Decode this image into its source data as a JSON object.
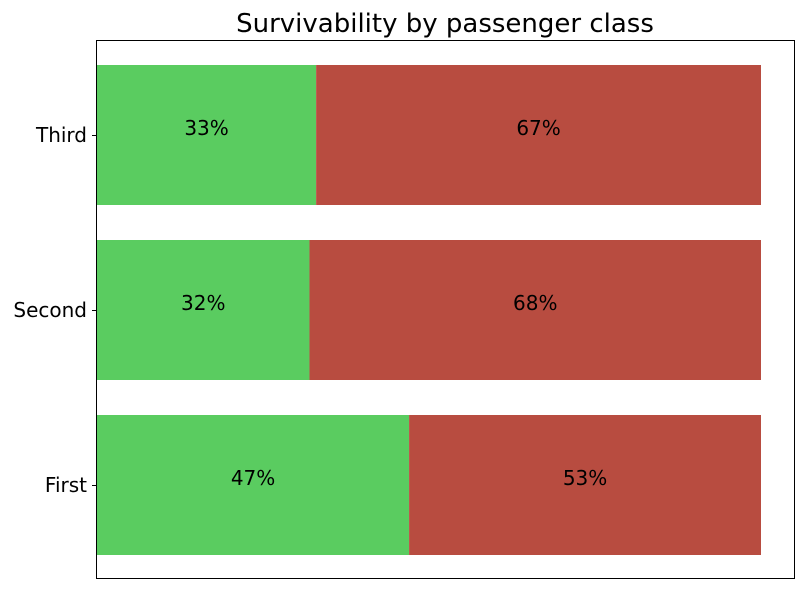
{
  "chart_data": {
    "type": "bar",
    "orientation": "horizontal",
    "stacked": true,
    "normalized": true,
    "title": "Survivability by passenger class",
    "categories": [
      "First",
      "Second",
      "Third"
    ],
    "series": [
      {
        "values": [
          0.47,
          0.32,
          0.33
        ],
        "labels": [
          "47%",
          "32%",
          "33%"
        ],
        "color": "#5acc60"
      },
      {
        "values": [
          0.53,
          0.68,
          0.67
        ],
        "labels": [
          "53%",
          "68%",
          "67%"
        ],
        "color": "#b84c40"
      }
    ],
    "xlim": [
      0,
      1
    ],
    "x_axis_visible": false,
    "grid": false,
    "legend": "none"
  }
}
